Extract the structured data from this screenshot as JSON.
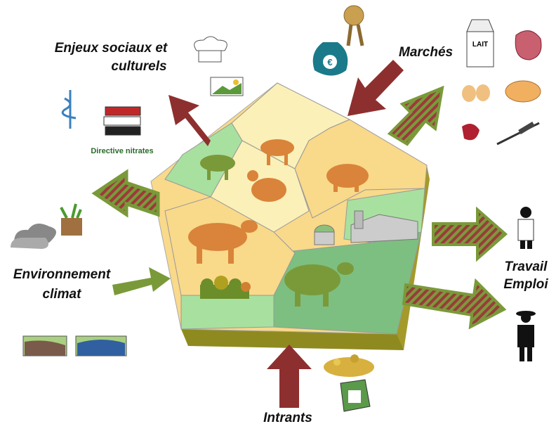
{
  "labels": {
    "social": [
      "Enjeux sociaux et",
      "culturels"
    ],
    "directive": "Directive nitrates",
    "markets": "Marchés",
    "environment": [
      "Environnement",
      "climat"
    ],
    "work": [
      "Travail",
      "Emploi"
    ],
    "inputs": "Intrants",
    "milk": "LAIT",
    "euro": "€"
  }
}
